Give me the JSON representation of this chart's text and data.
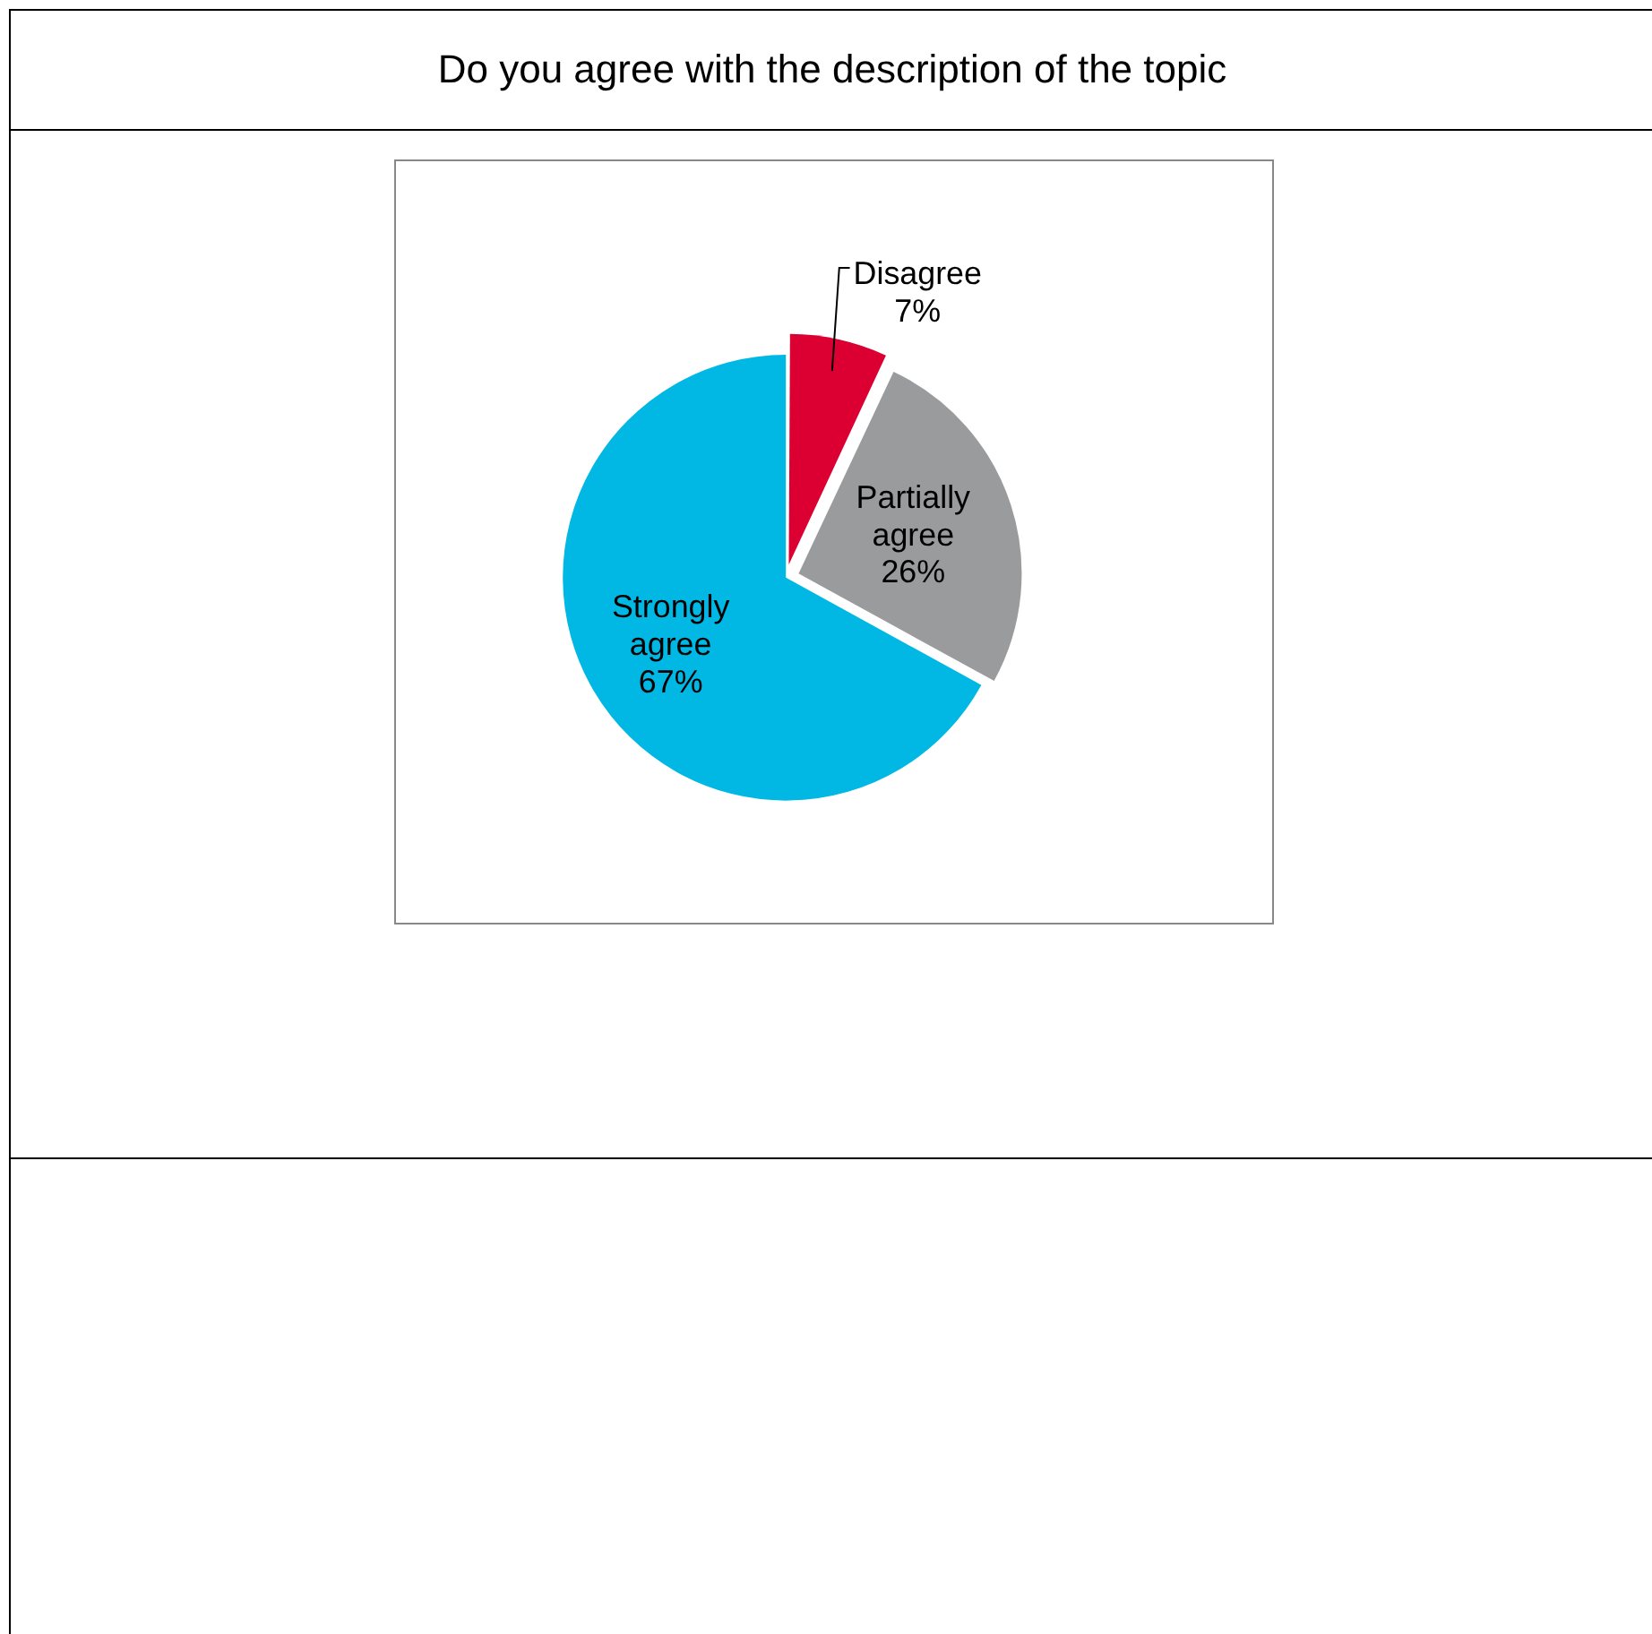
{
  "chart_data": {
    "type": "pie",
    "title": "Do you agree with the description of the topic",
    "categories": [
      "Disagree",
      "Partially agree",
      "Strongly agree"
    ],
    "values": [
      7,
      26,
      67
    ],
    "colors": [
      "#dc0032",
      "#9a9b9d",
      "#00b8e3"
    ],
    "value_labels": [
      "7%",
      "26%",
      "67%"
    ],
    "legend": false
  }
}
